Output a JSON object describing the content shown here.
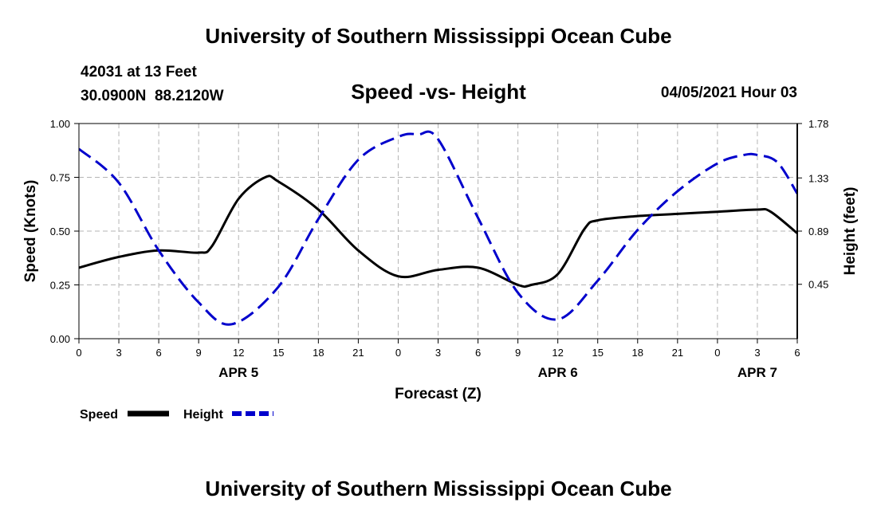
{
  "header": {
    "title": "University of Southern Mississippi Ocean Cube",
    "station_line": "42031 at 13 Feet",
    "coords_line": "30.0900N  88.2120W",
    "date_label": "04/05/2021 Hour 03"
  },
  "footer": {
    "title": "University of Southern Mississippi Ocean Cube"
  },
  "colors": {
    "speed": "#000000",
    "height": "#0000cc",
    "grid": "#b4b4b4"
  },
  "chart_data": {
    "type": "line",
    "title": "Speed -vs- Height",
    "xlabel": "Forecast (Z)",
    "ylabel": "Speed (Knots)",
    "y2label": "Height (feet)",
    "x_unit": "forecast hour",
    "xlim": [
      0,
      54
    ],
    "x_ticks": [
      0,
      3,
      6,
      9,
      12,
      15,
      18,
      21,
      24,
      27,
      30,
      33,
      36,
      39,
      42,
      45,
      48,
      51,
      54
    ],
    "x_tick_labels": [
      "0",
      "3",
      "6",
      "9",
      "12",
      "15",
      "18",
      "21",
      "0",
      "3",
      "6",
      "9",
      "12",
      "15",
      "18",
      "21",
      "0",
      "3",
      "6"
    ],
    "day_labels": [
      {
        "x": 12,
        "label": "APR 5"
      },
      {
        "x": 36,
        "label": "APR 6"
      },
      {
        "x": 51,
        "label": "APR 7"
      }
    ],
    "ylim": [
      0,
      1.0
    ],
    "y_ticks": [
      0,
      0.25,
      0.5,
      0.75,
      1.0
    ],
    "y_tick_labels": [
      "0.00",
      "0.25",
      "0.50",
      "0.75",
      "1.00"
    ],
    "y2lim": [
      0,
      1.78
    ],
    "y2_ticks": [
      0.45,
      0.89,
      1.33,
      1.78
    ],
    "y2_tick_labels": [
      "0.45",
      "0.89",
      "1.33",
      "1.78"
    ],
    "grid": true,
    "legend": {
      "placement": "bottom-left",
      "entries": [
        "Speed",
        "Height"
      ]
    },
    "series": [
      {
        "name": "Speed",
        "axis": "left",
        "style": "solid",
        "x": [
          0,
          3,
          6,
          9,
          10,
          12,
          14,
          15,
          18,
          21,
          24,
          27,
          30,
          33,
          34,
          36,
          38,
          39,
          42,
          45,
          48,
          51,
          52,
          54
        ],
        "values": [
          0.33,
          0.38,
          0.41,
          0.4,
          0.43,
          0.65,
          0.75,
          0.73,
          0.6,
          0.41,
          0.29,
          0.32,
          0.33,
          0.25,
          0.25,
          0.3,
          0.51,
          0.55,
          0.57,
          0.58,
          0.59,
          0.6,
          0.59,
          0.49
        ]
      },
      {
        "name": "Height",
        "axis": "right",
        "style": "dashed",
        "x": [
          0,
          3,
          6,
          9,
          11.5,
          15,
          18,
          21,
          24,
          25.5,
          27,
          30,
          33,
          36,
          39,
          42,
          45,
          48,
          50,
          51,
          52.5,
          54
        ],
        "values": [
          1.57,
          1.29,
          0.73,
          0.3,
          0.12,
          0.43,
          0.99,
          1.48,
          1.67,
          1.69,
          1.65,
          1.0,
          0.38,
          0.16,
          0.48,
          0.9,
          1.22,
          1.45,
          1.52,
          1.52,
          1.46,
          1.2
        ]
      }
    ]
  }
}
